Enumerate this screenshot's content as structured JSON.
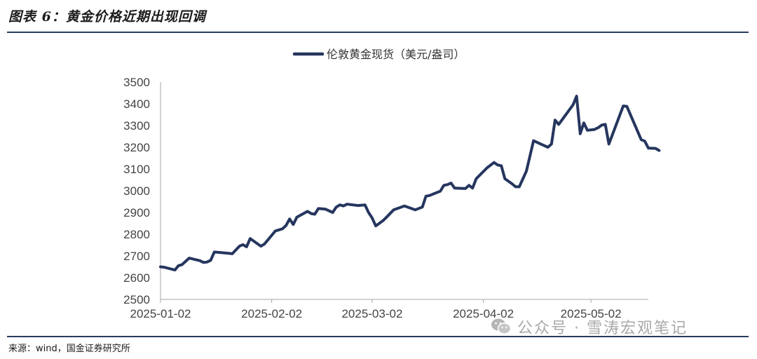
{
  "figure": {
    "title": "图表 6：黄金价格近期出现回调",
    "source": "来源：wind，国金证券研究所",
    "watermark": "公众号 · 雪涛宏观笔记",
    "watermark_icon": "wechat-icon"
  },
  "chart_data": {
    "type": "line",
    "title": "",
    "xlabel": "",
    "ylabel": "",
    "ylim": [
      2500,
      3500
    ],
    "y_ticks": [
      2500,
      2600,
      2700,
      2800,
      2900,
      3000,
      3100,
      3200,
      3300,
      3400,
      3500
    ],
    "x_tick_labels": [
      "2025-01-02",
      "2025-02-02",
      "2025-03-02",
      "2025-04-02",
      "2025-05-02"
    ],
    "xlim": [
      "2025-01-02",
      "2025-05-18"
    ],
    "grid": false,
    "legend_position": "top-center",
    "series": [
      {
        "name": "伦敦黄金现货（美元/盎司）",
        "color": "#25365e",
        "points": [
          [
            "2025-01-02",
            2650
          ],
          [
            "2025-01-03",
            2648
          ],
          [
            "2025-01-06",
            2635
          ],
          [
            "2025-01-07",
            2655
          ],
          [
            "2025-01-08",
            2660
          ],
          [
            "2025-01-10",
            2690
          ],
          [
            "2025-01-13",
            2678
          ],
          [
            "2025-01-14",
            2670
          ],
          [
            "2025-01-15",
            2672
          ],
          [
            "2025-01-16",
            2680
          ],
          [
            "2025-01-17",
            2718
          ],
          [
            "2025-01-21",
            2712
          ],
          [
            "2025-01-22",
            2710
          ],
          [
            "2025-01-24",
            2745
          ],
          [
            "2025-01-25",
            2752
          ],
          [
            "2025-01-26",
            2742
          ],
          [
            "2025-01-27",
            2780
          ],
          [
            "2025-01-30",
            2745
          ],
          [
            "2025-01-31",
            2755
          ],
          [
            "2025-02-03",
            2815
          ],
          [
            "2025-02-05",
            2825
          ],
          [
            "2025-02-06",
            2840
          ],
          [
            "2025-02-07",
            2870
          ],
          [
            "2025-02-08",
            2845
          ],
          [
            "2025-02-09",
            2878
          ],
          [
            "2025-02-12",
            2905
          ],
          [
            "2025-02-13",
            2895
          ],
          [
            "2025-02-14",
            2892
          ],
          [
            "2025-02-15",
            2918
          ],
          [
            "2025-02-17",
            2915
          ],
          [
            "2025-02-19",
            2900
          ],
          [
            "2025-02-20",
            2925
          ],
          [
            "2025-02-21",
            2935
          ],
          [
            "2025-02-22",
            2930
          ],
          [
            "2025-02-23",
            2938
          ],
          [
            "2025-02-26",
            2932
          ],
          [
            "2025-02-28",
            2935
          ],
          [
            "2025-03-01",
            2900
          ],
          [
            "2025-03-02",
            2875
          ],
          [
            "2025-03-03",
            2838
          ],
          [
            "2025-03-05",
            2862
          ],
          [
            "2025-03-06",
            2878
          ],
          [
            "2025-03-08",
            2912
          ],
          [
            "2025-03-11",
            2930
          ],
          [
            "2025-03-14",
            2912
          ],
          [
            "2025-03-16",
            2925
          ],
          [
            "2025-03-17",
            2975
          ],
          [
            "2025-03-18",
            2978
          ],
          [
            "2025-03-21",
            2998
          ],
          [
            "2025-03-22",
            3025
          ],
          [
            "2025-03-23",
            3028
          ],
          [
            "2025-03-24",
            3035
          ],
          [
            "2025-03-25",
            3012
          ],
          [
            "2025-03-28",
            3010
          ],
          [
            "2025-03-29",
            3025
          ],
          [
            "2025-03-30",
            3012
          ],
          [
            "2025-03-31",
            3055
          ],
          [
            "2025-04-03",
            3105
          ],
          [
            "2025-04-05",
            3130
          ],
          [
            "2025-04-06",
            3118
          ],
          [
            "2025-04-07",
            3115
          ],
          [
            "2025-04-08",
            3055
          ],
          [
            "2025-04-10",
            3032
          ],
          [
            "2025-04-11",
            3018
          ],
          [
            "2025-04-12",
            3018
          ],
          [
            "2025-04-14",
            3090
          ],
          [
            "2025-04-16",
            3230
          ],
          [
            "2025-04-18",
            3215
          ],
          [
            "2025-04-20",
            3200
          ],
          [
            "2025-04-21",
            3215
          ],
          [
            "2025-04-22",
            3325
          ],
          [
            "2025-04-23",
            3305
          ],
          [
            "2025-04-27",
            3395
          ],
          [
            "2025-04-28",
            3435
          ],
          [
            "2025-04-29",
            3262
          ],
          [
            "2025-04-30",
            3312
          ],
          [
            "2025-05-01",
            3278
          ],
          [
            "2025-05-03",
            3282
          ],
          [
            "2025-05-04",
            3290
          ],
          [
            "2025-05-05",
            3302
          ],
          [
            "2025-05-06",
            3305
          ],
          [
            "2025-05-07",
            3215
          ],
          [
            "2025-05-11",
            3390
          ],
          [
            "2025-05-12",
            3388
          ],
          [
            "2025-05-16",
            3235
          ],
          [
            "2025-05-17",
            3228
          ],
          [
            "2025-05-18",
            3196
          ],
          [
            "2025-05-20",
            3195
          ],
          [
            "2025-05-21",
            3185
          ]
        ]
      }
    ]
  }
}
